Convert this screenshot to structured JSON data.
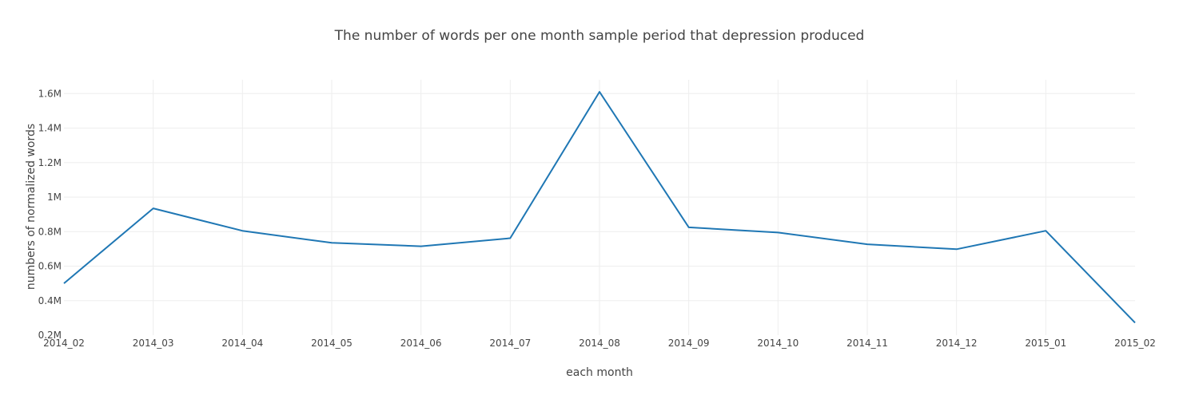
{
  "chart_data": {
    "type": "line",
    "title": "The number of words per one month sample period that depression produced",
    "xlabel": "each month",
    "ylabel": "numbers of normalized words",
    "categories": [
      "2014_02",
      "2014_03",
      "2014_04",
      "2014_05",
      "2014_06",
      "2014_07",
      "2014_08",
      "2014_09",
      "2014_10",
      "2014_11",
      "2014_12",
      "2015_01",
      "2015_02"
    ],
    "series": [
      {
        "values": [
          500000,
          935000,
          805000,
          735000,
          715000,
          762000,
          1610000,
          825000,
          795000,
          727000,
          698000,
          805000,
          272000
        ]
      }
    ],
    "ylim": [
      200000,
      1680000
    ],
    "yticks": [
      200000,
      400000,
      600000,
      800000,
      1000000,
      1200000,
      1400000,
      1600000
    ],
    "ytick_labels": [
      "0.2M",
      "0.4M",
      "0.6M",
      "0.8M",
      "1M",
      "1.2M",
      "1.4M",
      "1.6M"
    ],
    "grid": true,
    "legend": "none",
    "line_color": "#1f77b4"
  }
}
